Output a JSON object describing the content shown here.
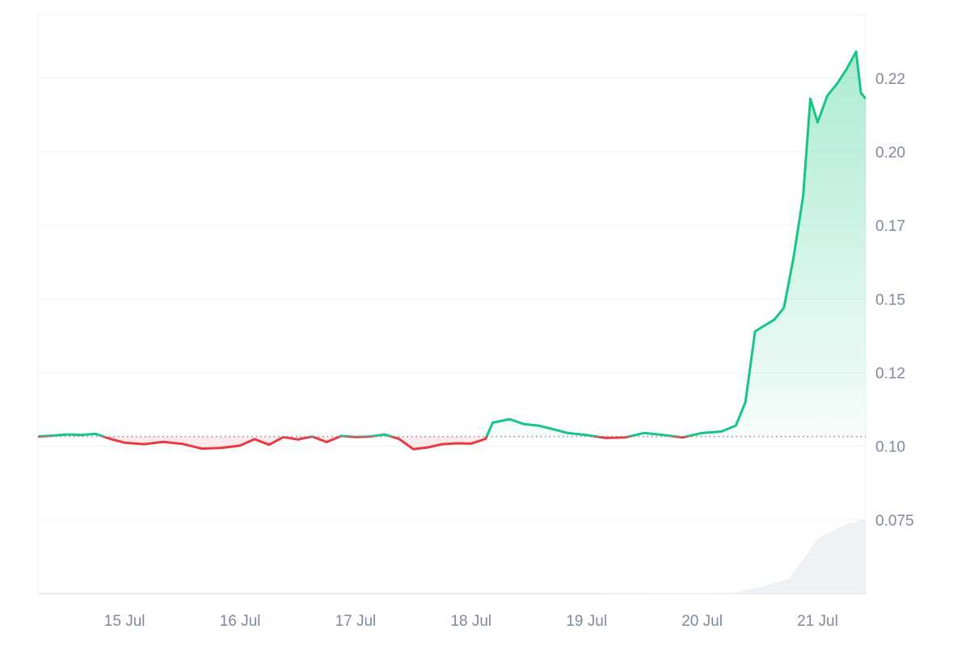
{
  "chart_data": {
    "type": "area",
    "baseline": 0.1033,
    "ylim": [
      0.05,
      0.2466
    ],
    "y_ticks": [
      {
        "value": 0.075,
        "label": "0.075"
      },
      {
        "value": 0.1,
        "label": "0.10"
      },
      {
        "value": 0.125,
        "label": "0.12"
      },
      {
        "value": 0.15,
        "label": "0.15"
      },
      {
        "value": 0.175,
        "label": "0.17"
      },
      {
        "value": 0.2,
        "label": "0.20"
      },
      {
        "value": 0.225,
        "label": "0.22"
      }
    ],
    "x_range": [
      "2024-07-14T06:00",
      "2024-07-21T10:00"
    ],
    "x_ticks": [
      {
        "value": "2024-07-15T00:00",
        "label": "15 Jul"
      },
      {
        "value": "2024-07-16T00:00",
        "label": "16 Jul"
      },
      {
        "value": "2024-07-17T00:00",
        "label": "17 Jul"
      },
      {
        "value": "2024-07-18T00:00",
        "label": "18 Jul"
      },
      {
        "value": "2024-07-19T00:00",
        "label": "19 Jul"
      },
      {
        "value": "2024-07-20T00:00",
        "label": "20 Jul"
      },
      {
        "value": "2024-07-21T00:00",
        "label": "21 Jul"
      }
    ],
    "grid": true,
    "colors": {
      "up": "#16c784",
      "down": "#ea3943",
      "grid": "#eff2f5",
      "axis_text": "#808a9d",
      "volume": "#eff2f5",
      "baseline": "#858ca2"
    },
    "series": [
      {
        "points": [
          [
            "2024-07-14T06:00",
            0.1033
          ],
          [
            "2024-07-14T09:00",
            0.1036
          ],
          [
            "2024-07-14T12:00",
            0.104
          ],
          [
            "2024-07-14T15:00",
            0.1038
          ],
          [
            "2024-07-14T18:00",
            0.1042
          ],
          [
            "2024-07-14T21:00",
            0.1025
          ],
          [
            "2024-07-15T00:00",
            0.1012
          ],
          [
            "2024-07-15T04:00",
            0.1007
          ],
          [
            "2024-07-15T08:00",
            0.1015
          ],
          [
            "2024-07-15T12:00",
            0.1008
          ],
          [
            "2024-07-15T16:00",
            0.0992
          ],
          [
            "2024-07-15T20:00",
            0.0994
          ],
          [
            "2024-07-16T00:00",
            0.1002
          ],
          [
            "2024-07-16T03:00",
            0.1024
          ],
          [
            "2024-07-16T06:00",
            0.1005
          ],
          [
            "2024-07-16T09:00",
            0.1031
          ],
          [
            "2024-07-16T12:00",
            0.1023
          ],
          [
            "2024-07-16T15:00",
            0.1033
          ],
          [
            "2024-07-16T18:00",
            0.1014
          ],
          [
            "2024-07-16T21:00",
            0.1035
          ],
          [
            "2024-07-17T00:00",
            0.1031
          ],
          [
            "2024-07-17T03:00",
            0.1033
          ],
          [
            "2024-07-17T06:00",
            0.104
          ],
          [
            "2024-07-17T09:00",
            0.1025
          ],
          [
            "2024-07-17T12:00",
            0.099
          ],
          [
            "2024-07-17T15:00",
            0.0996
          ],
          [
            "2024-07-17T18:00",
            0.1007
          ],
          [
            "2024-07-17T21:00",
            0.101
          ],
          [
            "2024-07-18T00:00",
            0.1009
          ],
          [
            "2024-07-18T03:00",
            0.1025
          ],
          [
            "2024-07-18T04:30",
            0.108
          ],
          [
            "2024-07-18T08:00",
            0.1092
          ],
          [
            "2024-07-18T11:00",
            0.1075
          ],
          [
            "2024-07-18T14:00",
            0.107
          ],
          [
            "2024-07-18T17:00",
            0.1058
          ],
          [
            "2024-07-18T20:00",
            0.1045
          ],
          [
            "2024-07-19T00:00",
            0.1038
          ],
          [
            "2024-07-19T04:00",
            0.1028
          ],
          [
            "2024-07-19T08:00",
            0.103
          ],
          [
            "2024-07-19T12:00",
            0.1045
          ],
          [
            "2024-07-19T16:00",
            0.1038
          ],
          [
            "2024-07-19T20:00",
            0.103
          ],
          [
            "2024-07-20T00:00",
            0.1045
          ],
          [
            "2024-07-20T04:00",
            0.105
          ],
          [
            "2024-07-20T07:00",
            0.107
          ],
          [
            "2024-07-20T09:00",
            0.115
          ],
          [
            "2024-07-20T11:00",
            0.139
          ],
          [
            "2024-07-20T13:00",
            0.141
          ],
          [
            "2024-07-20T15:00",
            0.143
          ],
          [
            "2024-07-20T17:00",
            0.147
          ],
          [
            "2024-07-20T19:00",
            0.164
          ],
          [
            "2024-07-20T21:00",
            0.185
          ],
          [
            "2024-07-20T22:30",
            0.218
          ],
          [
            "2024-07-21T00:00",
            0.21
          ],
          [
            "2024-07-21T02:00",
            0.219
          ],
          [
            "2024-07-21T04:00",
            0.223
          ],
          [
            "2024-07-21T06:00",
            0.228
          ],
          [
            "2024-07-21T08:00",
            0.234
          ],
          [
            "2024-07-21T09:00",
            0.22
          ],
          [
            "2024-07-21T10:00",
            0.218
          ]
        ]
      }
    ],
    "volume": [
      [
        "2024-07-14T06:00",
        0.002
      ],
      [
        "2024-07-18T06:00",
        0.003
      ],
      [
        "2024-07-19T00:00",
        0.003
      ],
      [
        "2024-07-20T06:00",
        0.006
      ],
      [
        "2024-07-20T12:00",
        0.08
      ],
      [
        "2024-07-20T18:00",
        0.18
      ],
      [
        "2024-07-20T21:00",
        0.42
      ],
      [
        "2024-07-21T00:00",
        0.68
      ],
      [
        "2024-07-21T06:00",
        0.86
      ],
      [
        "2024-07-21T10:00",
        0.92
      ]
    ]
  }
}
